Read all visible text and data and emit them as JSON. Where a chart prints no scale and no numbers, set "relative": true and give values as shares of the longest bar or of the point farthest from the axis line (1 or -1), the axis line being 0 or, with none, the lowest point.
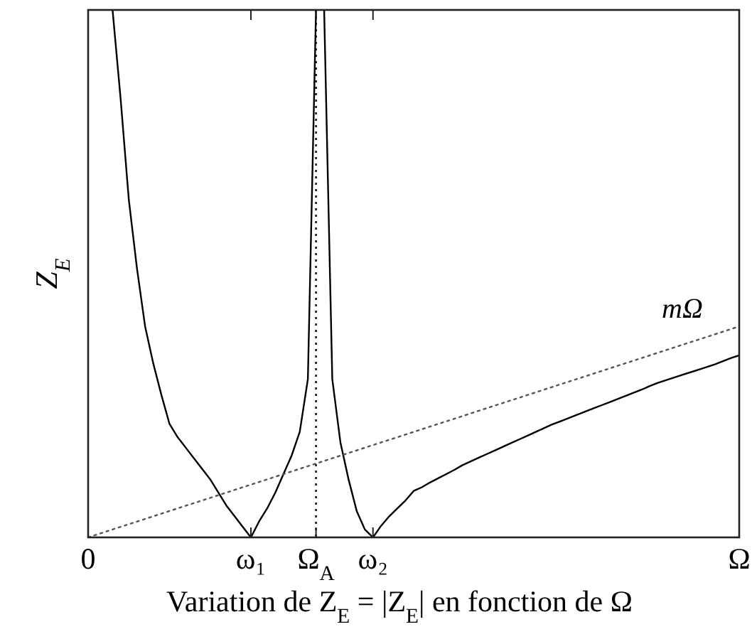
{
  "chart_data": {
    "type": "line",
    "relative": true,
    "xlabel": "Variation de Z$_{E}$ = |Z$_{E}$| en fonction de Ω",
    "ylabel": "Z$_{E}$",
    "categories": [
      "0",
      null,
      null,
      null,
      null,
      null,
      null,
      null,
      null,
      null,
      null,
      null,
      null,
      null,
      null,
      null,
      null,
      null,
      null,
      null,
      "ω₁",
      null,
      null,
      null,
      null,
      null,
      null,
      null,
      "Ω$_{A}$",
      null,
      null,
      null,
      null,
      null,
      null,
      "ω₂",
      null,
      null,
      null,
      null,
      null,
      null,
      null,
      null,
      null,
      null,
      null,
      null,
      null,
      null,
      null,
      null,
      null,
      null,
      null,
      null,
      null,
      null,
      null,
      null,
      null,
      null,
      null,
      null,
      null,
      null,
      null,
      null,
      null,
      null,
      null,
      null,
      null,
      null,
      null,
      null,
      null,
      null,
      null,
      null,
      "Ω"
    ],
    "series": [
      {
        "color": "#000000",
        "line_style": "solid",
        "values": [
          null,
          null,
          null,
          1.0,
          0.83,
          0.64,
          0.51,
          0.4,
          0.33,
          0.27,
          0.215,
          0.19,
          0.17,
          0.15,
          0.13,
          0.11,
          0.085,
          0.06,
          0.04,
          0.02,
          0,
          0.03,
          0.055,
          0.085,
          0.12,
          0.155,
          0.2,
          0.3,
          1.0,
          null,
          null,
          null,
          null,
          null,
          null,
          null,
          null,
          null,
          null,
          null,
          null,
          null,
          null,
          null,
          null,
          null,
          null,
          null,
          null,
          null,
          null,
          null,
          null,
          null,
          null,
          null,
          null,
          null,
          null,
          null,
          null,
          null,
          null,
          null,
          null,
          null,
          null,
          null,
          null,
          null,
          null,
          null,
          null,
          null,
          null,
          null,
          null,
          null,
          null,
          null,
          null
        ]
      },
      {
        "color": "#000000",
        "line_style": "solid",
        "values": [
          null,
          null,
          null,
          null,
          null,
          null,
          null,
          null,
          null,
          null,
          null,
          null,
          null,
          null,
          null,
          null,
          null,
          null,
          null,
          null,
          null,
          null,
          null,
          null,
          null,
          null,
          null,
          null,
          null,
          1.0,
          0.3,
          0.18,
          0.11,
          0.05,
          0.015,
          0,
          0.022,
          0.04,
          0.055,
          0.07,
          0.088,
          0.095,
          0.104,
          0.112,
          0.12,
          0.128,
          0.137,
          0.144,
          0.151,
          0.158,
          0.165,
          0.172,
          0.179,
          0.186,
          0.193,
          0.2,
          0.207,
          0.214,
          0.22,
          0.226,
          0.232,
          0.238,
          0.244,
          0.25,
          0.256,
          0.262,
          0.268,
          0.274,
          0.28,
          0.287,
          0.293,
          0.298,
          0.303,
          0.308,
          0.313,
          0.318,
          0.323,
          0.328,
          0.334,
          0.34,
          0.345
        ]
      },
      {
        "name": "mΩ",
        "type": "line",
        "color": "#555555",
        "line_style": "dotted",
        "values": [
          0,
          0.005,
          0.01,
          0.015,
          0.02,
          0.025,
          0.03,
          0.035,
          0.04,
          0.045,
          0.05,
          0.055,
          0.06,
          0.065,
          0.07,
          0.075,
          0.08,
          0.085,
          0.09,
          0.095,
          0.1,
          0.105,
          0.11,
          0.115,
          0.12,
          0.125,
          0.13,
          0.135,
          0.14,
          0.145,
          0.15,
          0.155,
          0.16,
          0.165,
          0.17,
          0.175,
          0.18,
          0.185,
          0.19,
          0.195,
          0.2,
          0.205,
          0.21,
          0.215,
          0.22,
          0.225,
          0.23,
          0.235,
          0.24,
          0.245,
          0.25,
          0.255,
          0.26,
          0.265,
          0.27,
          0.275,
          0.28,
          0.285,
          0.29,
          0.295,
          0.3,
          0.305,
          0.31,
          0.315,
          0.32,
          0.325,
          0.33,
          0.335,
          0.34,
          0.345,
          0.35,
          0.355,
          0.36,
          0.365,
          0.37,
          0.375,
          0.38,
          0.385,
          0.39,
          0.395,
          0.4
        ]
      }
    ],
    "ref_lines": [
      {
        "axis": "x",
        "value": "Ω$_{A}$",
        "line_style": "dotted",
        "color": "#000000"
      }
    ]
  }
}
